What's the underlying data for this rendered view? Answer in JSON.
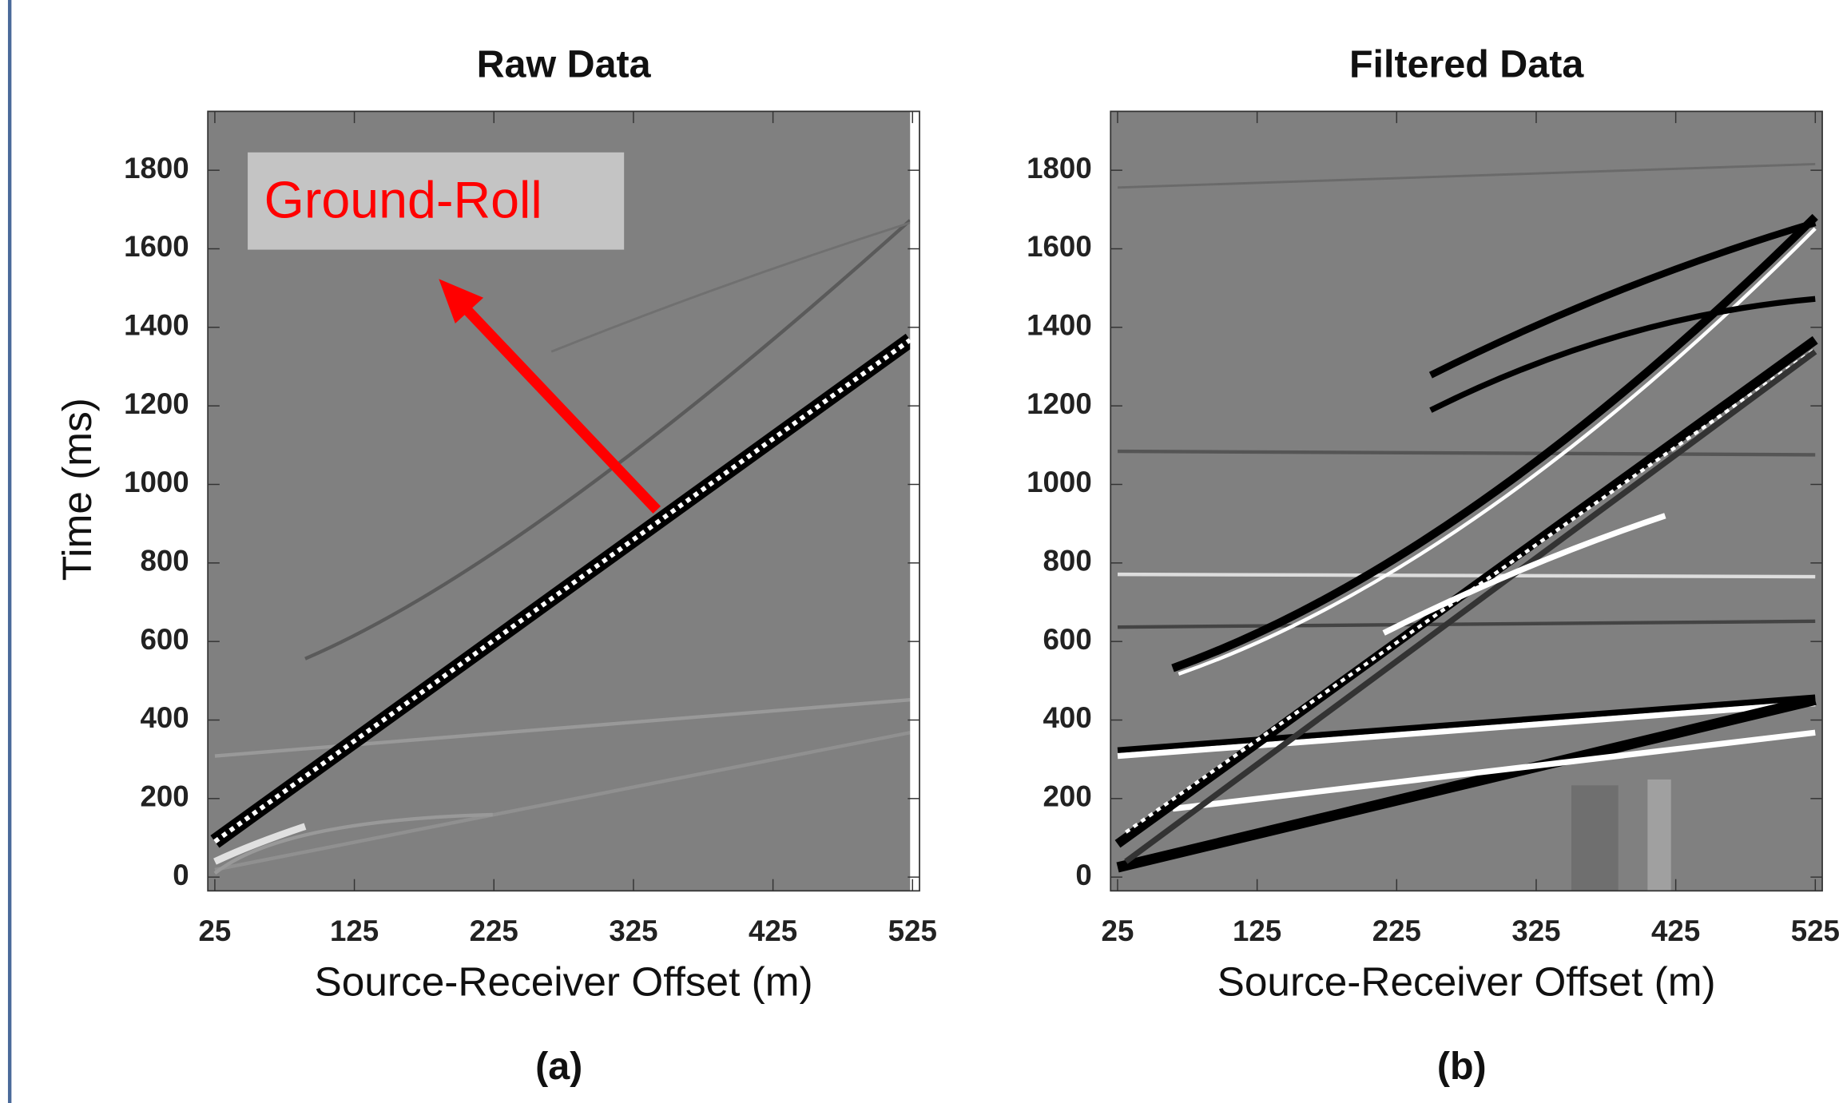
{
  "chart_data": [
    {
      "type": "image",
      "title": "Raw Data",
      "xlabel": "Source-Receiver Offset (m)",
      "ylabel": "Time (ms)",
      "xlim": [
        20,
        530
      ],
      "ylim": [
        -35,
        1950
      ],
      "xticks": [
        25,
        125,
        225,
        325,
        425,
        525
      ],
      "yticks": [
        0,
        200,
        400,
        600,
        800,
        1000,
        1200,
        1400,
        1600,
        1800
      ],
      "annotation": "Ground-Roll",
      "caption": "(a)"
    },
    {
      "type": "image",
      "title": "Filtered Data",
      "xlabel": "Source-Receiver Offset (m)",
      "xlim": [
        20,
        530
      ],
      "ylim": [
        -35,
        1950
      ],
      "xticks": [
        25,
        125,
        225,
        325,
        425,
        525
      ],
      "yticks": [
        0,
        200,
        400,
        600,
        800,
        1000,
        1200,
        1400,
        1600,
        1800
      ],
      "caption": "(b)"
    }
  ]
}
